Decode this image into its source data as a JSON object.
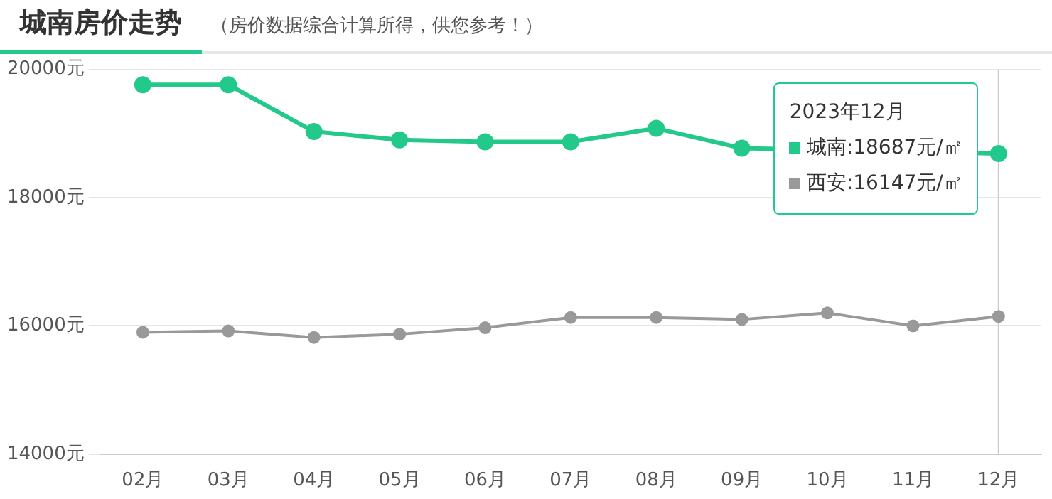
{
  "chart_data": {
    "type": "line",
    "title": "城南房价走势",
    "subtitle": "（房价数据综合计算所得，供您参考！）",
    "categories": [
      "02月",
      "03月",
      "04月",
      "05月",
      "06月",
      "07月",
      "08月",
      "09月",
      "10月",
      "11月",
      "12月"
    ],
    "series": [
      {
        "name": "城南",
        "color": "#22c98b",
        "values": [
          19760,
          19760,
          19030,
          18900,
          18870,
          18870,
          19080,
          18770,
          null,
          null,
          18687
        ]
      },
      {
        "name": "西安",
        "color": "#999999",
        "values": [
          15900,
          15920,
          15820,
          15870,
          15970,
          16130,
          16130,
          16100,
          16200,
          16000,
          16147
        ]
      }
    ],
    "ylim": [
      14000,
      20000
    ],
    "yticks": [
      {
        "value": 14000,
        "label": "14000元"
      },
      {
        "value": 16000,
        "label": "16000元"
      },
      {
        "value": 18000,
        "label": "18000元"
      },
      {
        "value": 20000,
        "label": "20000元"
      }
    ],
    "grid": "y",
    "legend": "top right",
    "marker": "circle",
    "line_style": "solid",
    "ref_lines": [
      {
        "axis": "x",
        "value": "12月",
        "color": "#cccccc"
      }
    ],
    "annotations": [
      "2023年12月",
      ":18687元/㎡",
      ":16147元/㎡"
    ]
  }
}
